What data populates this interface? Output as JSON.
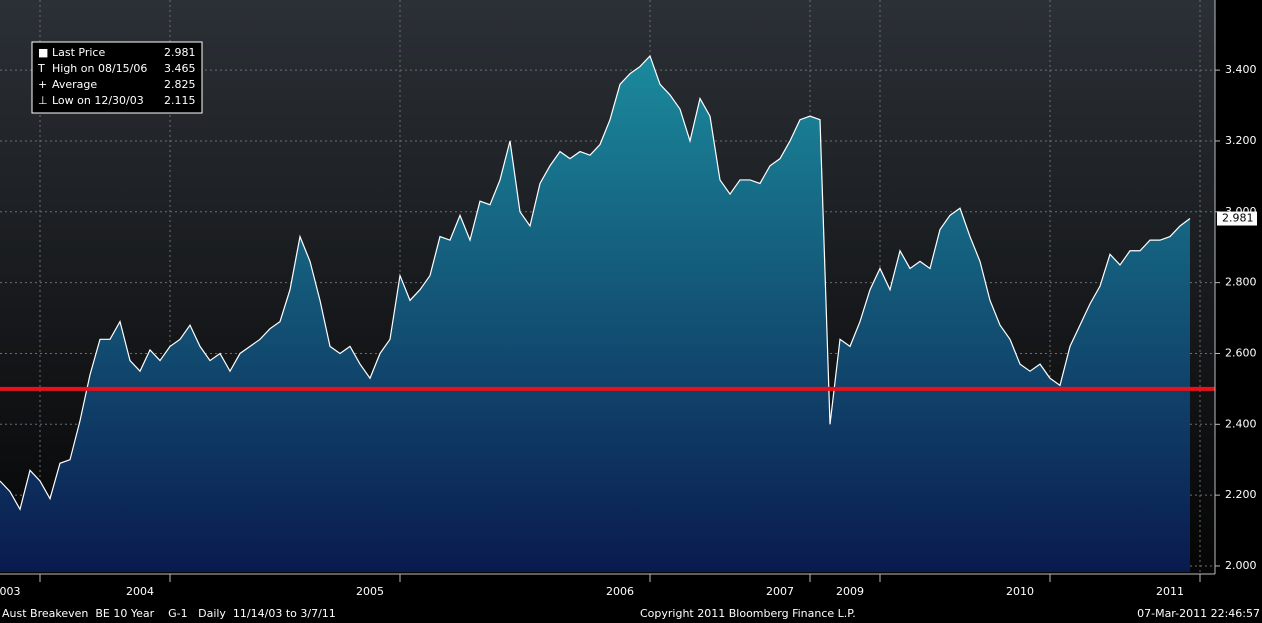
{
  "chart_data": {
    "type": "area",
    "categories": [
      null,
      "003",
      null,
      null,
      null,
      null,
      null,
      null,
      null,
      null,
      null,
      null,
      null,
      null,
      "2004",
      null,
      null,
      null,
      null,
      null,
      null,
      null,
      null,
      null,
      null,
      null,
      null,
      null,
      null,
      null,
      null,
      null,
      null,
      null,
      null,
      null,
      null,
      "2005",
      null,
      null,
      null,
      null,
      null,
      null,
      null,
      null,
      null,
      null,
      null,
      null,
      null,
      null,
      null,
      null,
      null,
      null,
      null,
      null,
      null,
      null,
      null,
      null,
      "2006",
      null,
      null,
      null,
      null,
      null,
      null,
      null,
      null,
      null,
      null,
      null,
      null,
      null,
      null,
      null,
      "2007",
      null,
      null,
      null,
      null,
      null,
      null,
      "2009",
      null,
      null,
      null,
      null,
      null,
      null,
      null,
      null,
      null,
      null,
      null,
      null,
      null,
      null,
      null,
      null,
      "2010",
      null,
      null,
      null,
      null,
      null,
      null,
      null,
      null,
      null,
      null,
      null,
      null,
      null,
      null,
      "2011",
      null,
      null
    ],
    "series": [
      {
        "name": "Last Price",
        "color": "#ffffff",
        "fill_top": "#1b8a9c",
        "fill_bottom": "#0a1a4e",
        "values": [
          2.24,
          2.21,
          2.16,
          2.27,
          2.24,
          2.19,
          2.29,
          2.3,
          2.41,
          2.54,
          2.64,
          2.64,
          2.69,
          2.58,
          2.55,
          2.61,
          2.58,
          2.62,
          2.64,
          2.68,
          2.62,
          2.58,
          2.6,
          2.55,
          2.6,
          2.62,
          2.64,
          2.67,
          2.69,
          2.78,
          2.93,
          2.86,
          2.75,
          2.62,
          2.6,
          2.62,
          2.57,
          2.53,
          2.6,
          2.64,
          2.82,
          2.75,
          2.78,
          2.82,
          2.93,
          2.92,
          2.99,
          2.92,
          3.03,
          3.02,
          3.09,
          3.2,
          3.0,
          2.96,
          3.08,
          3.13,
          3.17,
          3.15,
          3.17,
          3.16,
          3.19,
          3.26,
          3.36,
          3.39,
          3.41,
          3.44,
          3.36,
          3.33,
          3.29,
          3.2,
          3.32,
          3.27,
          3.09,
          3.05,
          3.09,
          3.09,
          3.08,
          3.13,
          3.15,
          3.2,
          3.26,
          3.27,
          3.26,
          2.4,
          2.64,
          2.62,
          2.69,
          2.78,
          2.84,
          2.78,
          2.89,
          2.84,
          2.86,
          2.84,
          2.95,
          2.99,
          3.01,
          2.93,
          2.86,
          2.75,
          2.68,
          2.64,
          2.57,
          2.55,
          2.57,
          2.53,
          2.51,
          2.62,
          2.68,
          2.74,
          2.79,
          2.88,
          2.85,
          2.89,
          2.89,
          2.92,
          2.92,
          2.93,
          2.96,
          2.981
        ]
      }
    ],
    "ylim": [
      1.983,
      3.598
    ],
    "yticks": [
      {
        "value": 2.0,
        "label": "2.000"
      },
      {
        "value": 2.2,
        "label": "2.200"
      },
      {
        "value": 2.4,
        "label": "2.400"
      },
      {
        "value": 2.6,
        "label": "2.600"
      },
      {
        "value": 2.8,
        "label": "2.800"
      },
      {
        "value": 3.0,
        "label": "3.000"
      },
      {
        "value": 3.2,
        "label": "3.200"
      },
      {
        "value": 3.4,
        "label": "3.400"
      }
    ],
    "grid": true,
    "hline": {
      "value": 2.5,
      "color": "#e8101a"
    },
    "legend": [
      {
        "label": "Last Price",
        "value": 2.981
      },
      {
        "label": "High on 08/15/06",
        "value": 3.465
      },
      {
        "label": "Average",
        "value": 2.825
      },
      {
        "label": "Low on 12/30/03",
        "value": 2.115
      }
    ],
    "footer": [
      "Aust Breakeven  BE 10 Year    G-1   Daily  11/14/03 to 3/7/11",
      "Copyright 2011 Bloomberg Finance L.P.",
      "07-Mar-2011 22:46:57"
    ]
  }
}
